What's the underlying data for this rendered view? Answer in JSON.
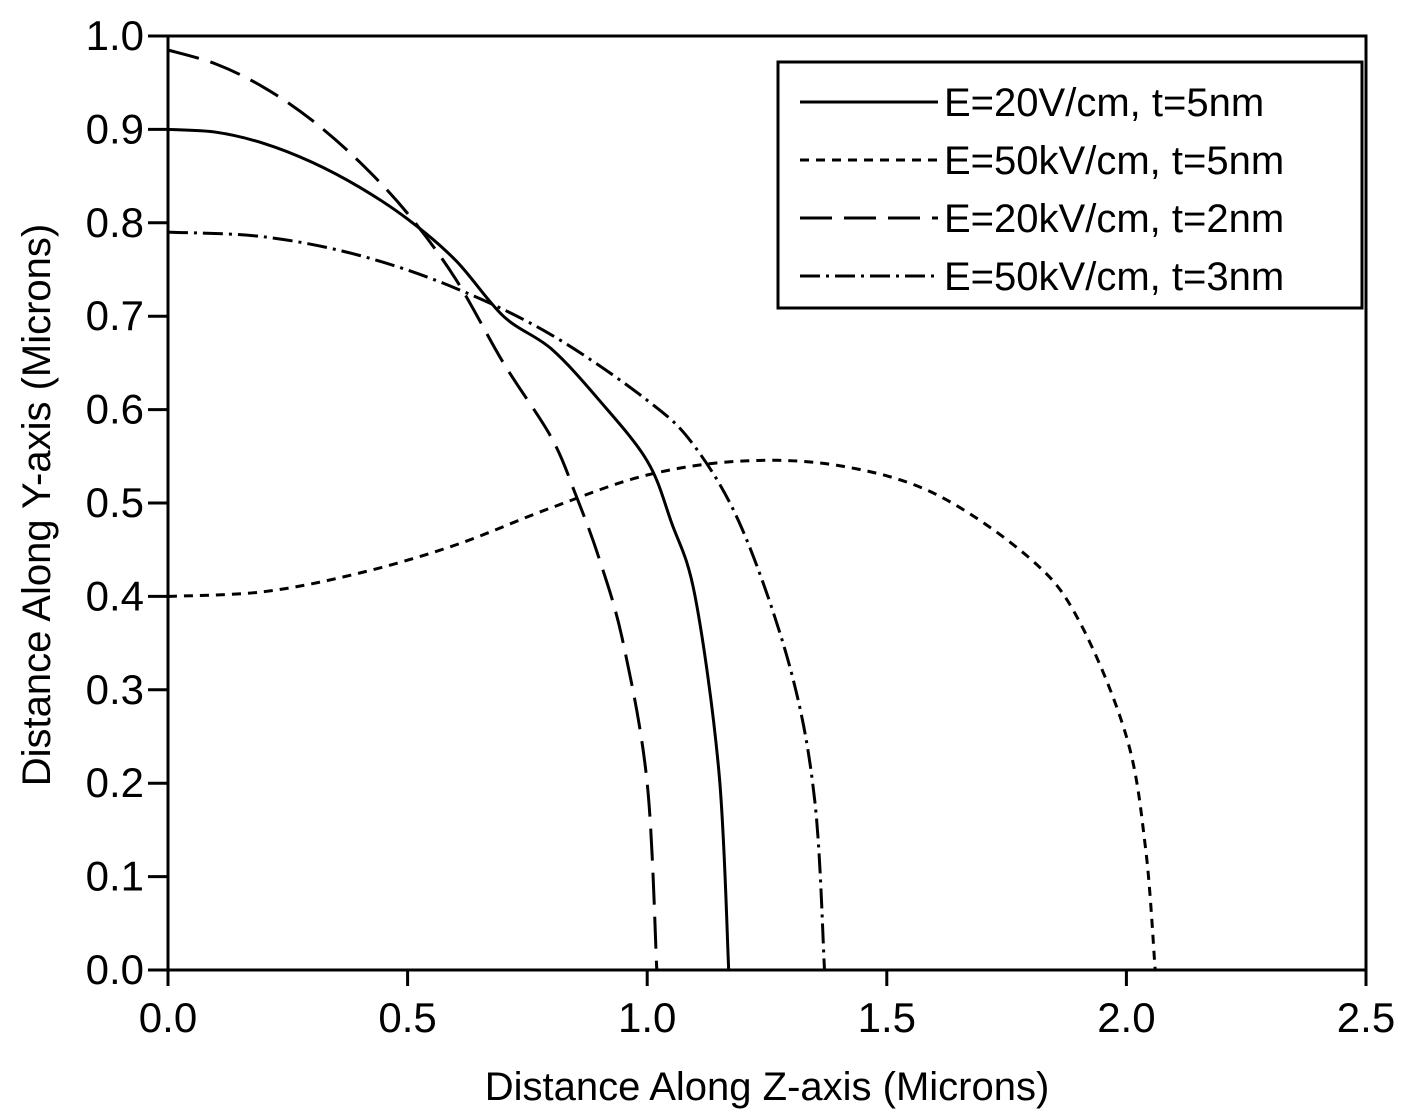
{
  "chart_data": {
    "type": "line",
    "xlabel": "Distance Along Z-axis (Microns)",
    "ylabel": "Distance Along Y-axis (Microns)",
    "xlim": [
      0,
      2.5
    ],
    "ylim": [
      0,
      1.0
    ],
    "x_ticks": [
      "0.0",
      "0.5",
      "1.0",
      "1.5",
      "2.0",
      "2.5"
    ],
    "y_ticks": [
      "0.0",
      "0.1",
      "0.2",
      "0.3",
      "0.4",
      "0.5",
      "0.6",
      "0.7",
      "0.8",
      "0.9",
      "1.0"
    ],
    "grid": false,
    "legend_position": "top-right",
    "series": [
      {
        "name": "E=20V/cm, t=5nm",
        "style": "solid",
        "x": [
          0,
          0.1,
          0.2,
          0.3,
          0.4,
          0.5,
          0.6,
          0.7,
          0.8,
          0.9,
          1.0,
          1.05,
          1.1,
          1.15,
          1.17
        ],
        "y": [
          0.9,
          0.897,
          0.885,
          0.865,
          0.838,
          0.804,
          0.76,
          0.7,
          0.665,
          0.61,
          0.545,
          0.48,
          0.4,
          0.21,
          0.0
        ]
      },
      {
        "name": "E=50kV/cm, t=5nm",
        "style": "short-dash",
        "x": [
          0,
          0.2,
          0.4,
          0.6,
          0.8,
          1.0,
          1.2,
          1.4,
          1.6,
          1.8,
          1.9,
          2.0,
          2.04,
          2.06
        ],
        "y": [
          0.4,
          0.405,
          0.425,
          0.455,
          0.495,
          0.53,
          0.545,
          0.54,
          0.51,
          0.44,
          0.375,
          0.25,
          0.13,
          0.0
        ]
      },
      {
        "name": "E=20kV/cm, t=2nm",
        "style": "long-dash",
        "x": [
          0,
          0.1,
          0.2,
          0.3,
          0.4,
          0.5,
          0.6,
          0.7,
          0.8,
          0.85,
          0.9,
          0.95,
          1.0,
          1.02
        ],
        "y": [
          0.985,
          0.97,
          0.945,
          0.91,
          0.865,
          0.81,
          0.74,
          0.65,
          0.57,
          0.51,
          0.44,
          0.35,
          0.2,
          0.0
        ]
      },
      {
        "name": "E=50kV/cm, t=3nm",
        "style": "dash-dot",
        "x": [
          0,
          0.2,
          0.4,
          0.6,
          0.8,
          1.0,
          1.1,
          1.2,
          1.3,
          1.35,
          1.37
        ],
        "y": [
          0.79,
          0.785,
          0.765,
          0.73,
          0.68,
          0.61,
          0.56,
          0.47,
          0.32,
          0.18,
          0.0
        ]
      }
    ]
  }
}
